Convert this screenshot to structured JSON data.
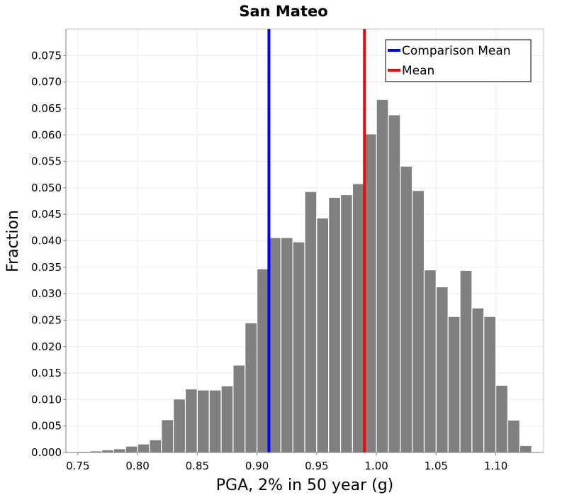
{
  "chart_data": {
    "type": "bar",
    "title": "San Mateo",
    "xlabel": "PGA, 2% in 50 year (g)",
    "ylabel": "Fraction",
    "xlim": [
      0.74,
      1.14
    ],
    "ylim": [
      0,
      0.08
    ],
    "grid": true,
    "legend_position": "top-right",
    "bin_width": 0.01,
    "x": [
      0.755,
      0.765,
      0.775,
      0.785,
      0.795,
      0.805,
      0.815,
      0.825,
      0.835,
      0.845,
      0.855,
      0.865,
      0.875,
      0.885,
      0.895,
      0.905,
      0.915,
      0.925,
      0.935,
      0.945,
      0.955,
      0.965,
      0.975,
      0.985,
      0.995,
      1.005,
      1.015,
      1.025,
      1.035,
      1.045,
      1.055,
      1.065,
      1.075,
      1.085,
      1.095,
      1.105,
      1.115,
      1.125
    ],
    "values": [
      0.0002,
      0.0003,
      0.0005,
      0.0007,
      0.0012,
      0.0016,
      0.0024,
      0.0062,
      0.0101,
      0.012,
      0.0118,
      0.0118,
      0.0126,
      0.0165,
      0.0245,
      0.0347,
      0.0406,
      0.0406,
      0.0398,
      0.0493,
      0.0443,
      0.0482,
      0.0487,
      0.0508,
      0.0602,
      0.0667,
      0.0638,
      0.0541,
      0.0495,
      0.0345,
      0.0313,
      0.0257,
      0.0344,
      0.0273,
      0.0257,
      0.0127,
      0.0061,
      0.0013
    ],
    "bar_color": "#808080",
    "x_ticks": [
      "0.75",
      "0.80",
      "0.85",
      "0.90",
      "0.95",
      "1.00",
      "1.05",
      "1.10"
    ],
    "x_tick_values": [
      0.75,
      0.8,
      0.85,
      0.9,
      0.95,
      1.0,
      1.05,
      1.1
    ],
    "y_ticks": [
      "0.000",
      "0.005",
      "0.010",
      "0.015",
      "0.020",
      "0.025",
      "0.030",
      "0.035",
      "0.040",
      "0.045",
      "0.050",
      "0.055",
      "0.060",
      "0.065",
      "0.070",
      "0.075"
    ],
    "y_tick_values": [
      0,
      0.005,
      0.01,
      0.015,
      0.02,
      0.025,
      0.03,
      0.035,
      0.04,
      0.045,
      0.05,
      0.055,
      0.06,
      0.065,
      0.07,
      0.075
    ],
    "vlines": [
      {
        "name": "Comparison Mean",
        "x": 0.91,
        "color": "#0000ff"
      },
      {
        "name": "Mean",
        "x": 0.99,
        "color": "#ff0000"
      }
    ]
  }
}
